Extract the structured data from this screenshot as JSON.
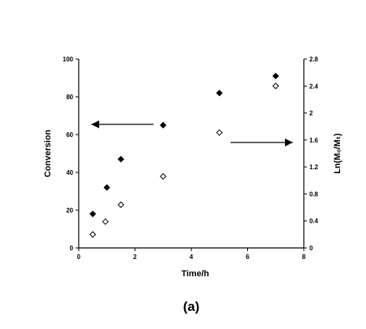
{
  "chart_data": {
    "type": "scatter",
    "caption": "(a)",
    "xlabel": "Time/h",
    "ylabel_left": "Conversion",
    "ylabel_right": "Ln(M₀/Mₜ)",
    "xlim": [
      0,
      8
    ],
    "ylim_left": [
      0,
      100
    ],
    "ylim_right": [
      0,
      2.8
    ],
    "x_ticks": [
      "0",
      "2",
      "4",
      "6",
      "8"
    ],
    "y_left_ticks": [
      "0",
      "20",
      "40",
      "60",
      "80",
      "100"
    ],
    "y_right_ticks": [
      "0",
      "0.4",
      "0.8",
      "1.2",
      "1.6",
      "2",
      "2.4",
      "2.8"
    ],
    "grid": false,
    "series": [
      {
        "axis": "left",
        "marker": "filled-diamond",
        "color": "#000000",
        "x": [
          0.5,
          1.0,
          1.5,
          3.0,
          5.0,
          7.0
        ],
        "y": [
          18,
          32,
          47,
          65,
          82,
          91
        ]
      },
      {
        "axis": "right",
        "marker": "open-diamond",
        "color": "#000000",
        "x": [
          0.5,
          0.95,
          1.5,
          3.0,
          5.0,
          7.0
        ],
        "y": [
          0.2,
          0.39,
          0.64,
          1.06,
          1.71,
          2.4
        ]
      }
    ],
    "annotations": [
      {
        "type": "arrow",
        "direction": "left",
        "points_to_axis": "left"
      },
      {
        "type": "arrow",
        "direction": "right",
        "points_to_axis": "right"
      }
    ]
  }
}
